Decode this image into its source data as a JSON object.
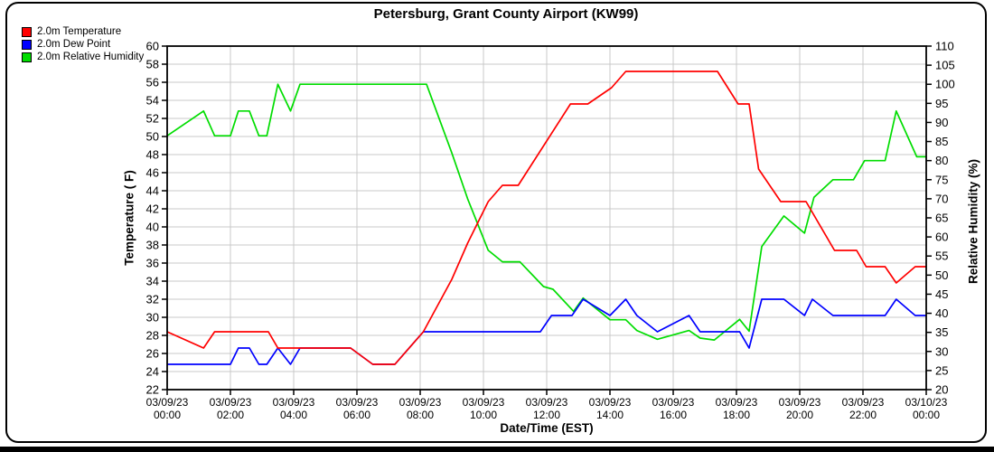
{
  "title": "Petersburg, Grant County Airport (KW99)",
  "legend": [
    {
      "label": "2.0m Temperature",
      "color": "#ff0000"
    },
    {
      "label": "2.0m Dew Point",
      "color": "#0000ff"
    },
    {
      "label": "2.0m Relative Humidity",
      "color": "#00dd00"
    }
  ],
  "chart_data": {
    "type": "line",
    "title": "Petersburg, Grant County Airport (KW99)",
    "xlabel": "Date/Time (EST)",
    "ylabel_left": "Temperature ( F)",
    "ylabel_right": "Relative Humidity (%)",
    "grid": true,
    "grid_color": "#c9c9c9",
    "x_range_hours": [
      0,
      24
    ],
    "ylim_left": [
      22,
      60
    ],
    "ytick_step_left": 2,
    "ylim_right": [
      20,
      110
    ],
    "ytick_step_right": 5,
    "x_ticks": [
      {
        "hour": 0,
        "date": "03/09/23",
        "time": "00:00"
      },
      {
        "hour": 2,
        "date": "03/09/23",
        "time": "02:00"
      },
      {
        "hour": 4,
        "date": "03/09/23",
        "time": "04:00"
      },
      {
        "hour": 6,
        "date": "03/09/23",
        "time": "06:00"
      },
      {
        "hour": 8,
        "date": "03/09/23",
        "time": "08:00"
      },
      {
        "hour": 10,
        "date": "03/09/23",
        "time": "10:00"
      },
      {
        "hour": 12,
        "date": "03/09/23",
        "time": "12:00"
      },
      {
        "hour": 14,
        "date": "03/09/23",
        "time": "14:00"
      },
      {
        "hour": 16,
        "date": "03/09/23",
        "time": "16:00"
      },
      {
        "hour": 18,
        "date": "03/09/23",
        "time": "18:00"
      },
      {
        "hour": 20,
        "date": "03/09/23",
        "time": "20:00"
      },
      {
        "hour": 22,
        "date": "03/09/23",
        "time": "22:00"
      },
      {
        "hour": 24,
        "date": "03/10/23",
        "time": "00:00"
      }
    ],
    "series": [
      {
        "name": "2.0m Relative Humidity",
        "color": "#00dd00",
        "axis": "right",
        "unit": "%",
        "points": [
          [
            0,
            86.5
          ],
          [
            1.15,
            93
          ],
          [
            1.5,
            86.5
          ],
          [
            2,
            86.5
          ],
          [
            2.25,
            93
          ],
          [
            2.6,
            93
          ],
          [
            2.9,
            86.5
          ],
          [
            3.15,
            86.5
          ],
          [
            3.5,
            100
          ],
          [
            3.9,
            93
          ],
          [
            4.2,
            100
          ],
          [
            8.2,
            100
          ],
          [
            9,
            82
          ],
          [
            9.5,
            70
          ],
          [
            10.15,
            56.5
          ],
          [
            10.6,
            53.5
          ],
          [
            11.15,
            53.5
          ],
          [
            11.9,
            47
          ],
          [
            12.2,
            46.3
          ],
          [
            12.85,
            40.5
          ],
          [
            13.15,
            44
          ],
          [
            14,
            38.3
          ],
          [
            14.5,
            38.3
          ],
          [
            14.85,
            35.5
          ],
          [
            15.5,
            33.2
          ],
          [
            16.5,
            35.5
          ],
          [
            16.85,
            33.5
          ],
          [
            17.3,
            33
          ],
          [
            18.1,
            38.4
          ],
          [
            18.4,
            35.3
          ],
          [
            18.8,
            57.5
          ],
          [
            19.5,
            65.5
          ],
          [
            20.15,
            61
          ],
          [
            20.45,
            70.4
          ],
          [
            21.05,
            75
          ],
          [
            21.7,
            75
          ],
          [
            22.05,
            80
          ],
          [
            22.7,
            80
          ],
          [
            23.05,
            93
          ],
          [
            23.7,
            81
          ],
          [
            24,
            81
          ]
        ]
      },
      {
        "name": "2.0m Dew Point",
        "color": "#0000ff",
        "axis": "left",
        "unit": "F",
        "points": [
          [
            0,
            24.8
          ],
          [
            2,
            24.8
          ],
          [
            2.25,
            26.6
          ],
          [
            2.6,
            26.6
          ],
          [
            2.9,
            24.8
          ],
          [
            3.15,
            24.8
          ],
          [
            3.5,
            26.6
          ],
          [
            3.9,
            24.8
          ],
          [
            4.2,
            26.6
          ],
          [
            5.8,
            26.6
          ],
          [
            6.5,
            24.8
          ],
          [
            7.2,
            24.8
          ],
          [
            8.1,
            28.4
          ],
          [
            11.8,
            28.4
          ],
          [
            12.15,
            30.2
          ],
          [
            12.8,
            30.2
          ],
          [
            13.15,
            32
          ],
          [
            14,
            30.2
          ],
          [
            14.5,
            32
          ],
          [
            14.85,
            30.2
          ],
          [
            15.5,
            28.4
          ],
          [
            16.5,
            30.2
          ],
          [
            16.85,
            28.4
          ],
          [
            18.1,
            28.4
          ],
          [
            18.4,
            26.6
          ],
          [
            18.8,
            32
          ],
          [
            19.5,
            32
          ],
          [
            20.15,
            30.2
          ],
          [
            20.4,
            32
          ],
          [
            21.05,
            30.2
          ],
          [
            22.7,
            30.2
          ],
          [
            23.05,
            32
          ],
          [
            23.65,
            30.2
          ],
          [
            24,
            30.2
          ]
        ]
      },
      {
        "name": "2.0m Temperature",
        "color": "#ff0000",
        "axis": "left",
        "unit": "F",
        "points": [
          [
            0,
            28.4
          ],
          [
            1.15,
            26.6
          ],
          [
            1.5,
            28.4
          ],
          [
            3.2,
            28.4
          ],
          [
            3.5,
            26.6
          ],
          [
            5.8,
            26.6
          ],
          [
            6.5,
            24.8
          ],
          [
            7.2,
            24.8
          ],
          [
            8.1,
            28.4
          ],
          [
            9,
            34.2
          ],
          [
            9.5,
            38.2
          ],
          [
            10.15,
            42.8
          ],
          [
            10.6,
            44.6
          ],
          [
            11.1,
            44.6
          ],
          [
            12.75,
            53.6
          ],
          [
            13.3,
            53.6
          ],
          [
            14.05,
            55.4
          ],
          [
            14.5,
            57.2
          ],
          [
            17.4,
            57.2
          ],
          [
            18.05,
            53.6
          ],
          [
            18.4,
            53.6
          ],
          [
            18.7,
            46.4
          ],
          [
            19.4,
            42.8
          ],
          [
            20.2,
            42.8
          ],
          [
            21.1,
            37.4
          ],
          [
            21.8,
            37.4
          ],
          [
            22.1,
            35.6
          ],
          [
            22.7,
            35.6
          ],
          [
            23.05,
            33.8
          ],
          [
            23.65,
            35.6
          ],
          [
            24,
            35.6
          ]
        ]
      }
    ]
  }
}
